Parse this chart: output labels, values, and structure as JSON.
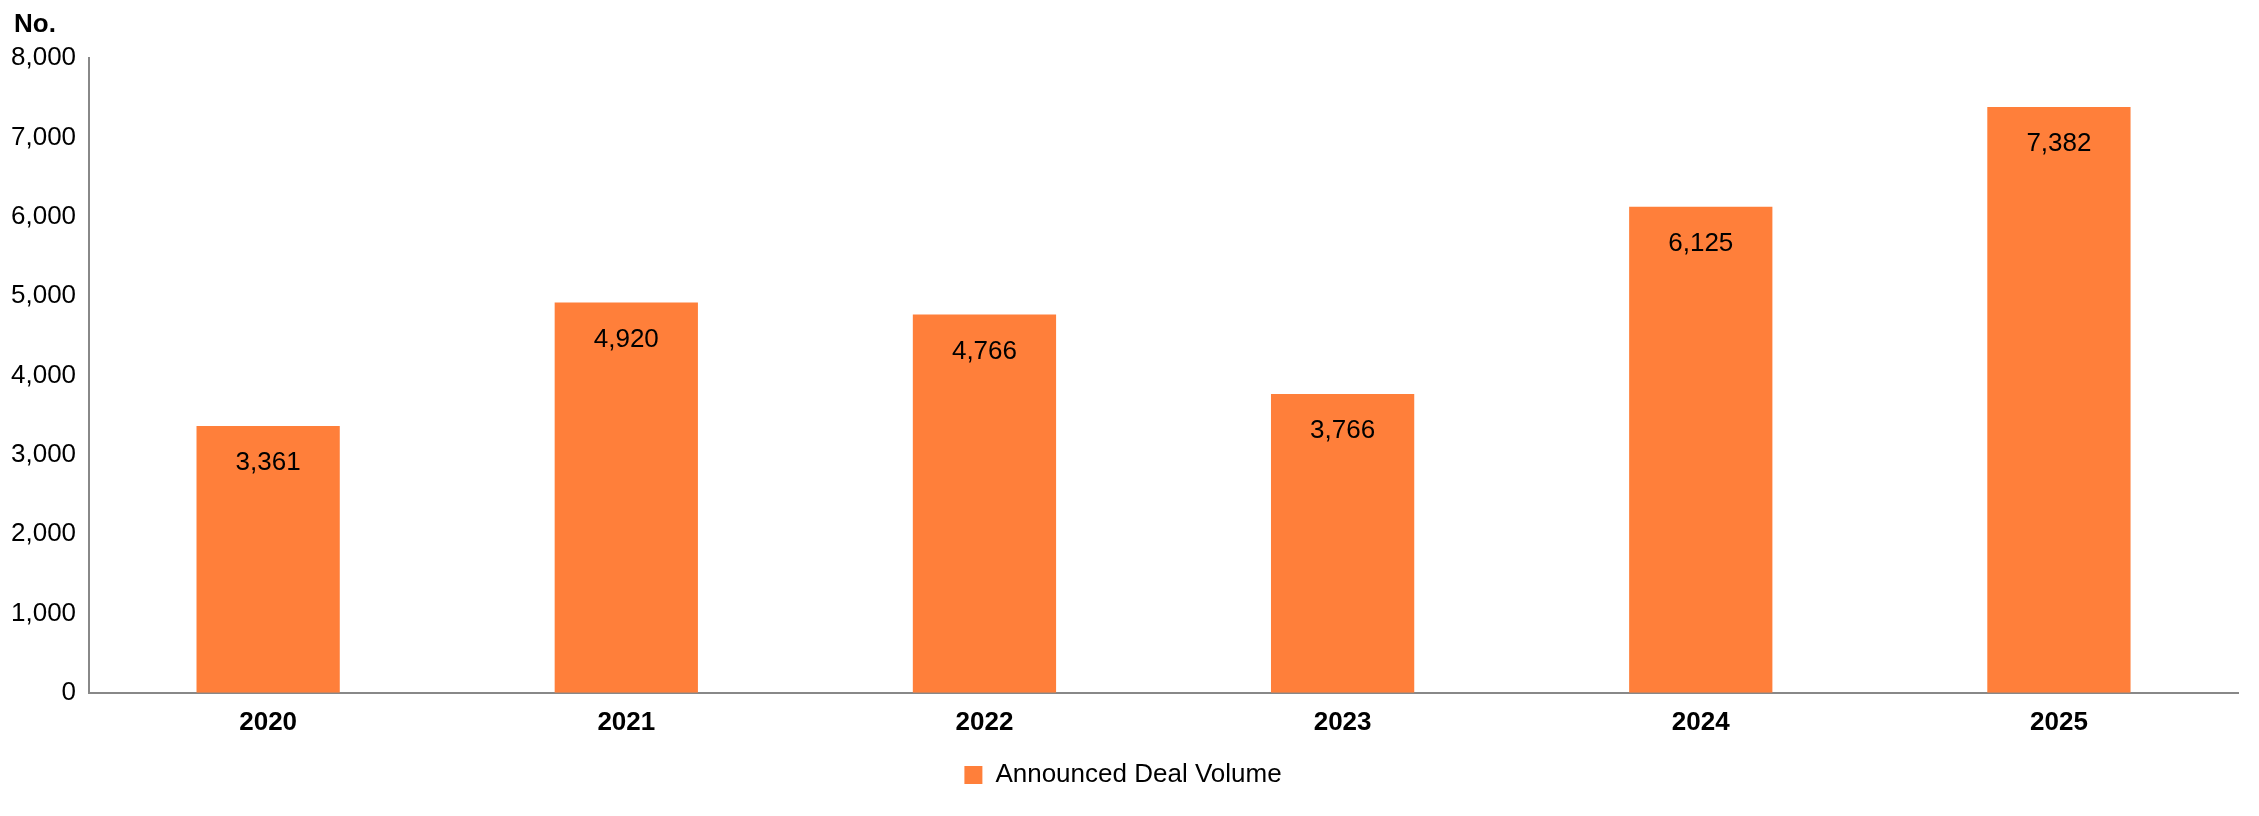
{
  "chart_data": {
    "type": "bar",
    "ylabel": "No.",
    "categories": [
      "2020",
      "2021",
      "2022",
      "2023",
      "2024",
      "2025"
    ],
    "series": [
      {
        "name": "Announced Deal Volume",
        "color": "#ff7f3a",
        "values": [
          3361,
          4920,
          4766,
          3766,
          6125,
          7382
        ],
        "value_labels": [
          "3,361",
          "4,920",
          "4,766",
          "3,766",
          "6,125",
          "7,382"
        ]
      }
    ],
    "ylim": [
      0,
      8000
    ],
    "yticks": [
      0,
      {
        "value": 1000,
        "label": "1,000"
      },
      {
        "value": 2000,
        "label": "2,000"
      },
      {
        "value": 3000,
        "label": "3,000"
      },
      {
        "value": 4000,
        "label": "4,000"
      },
      {
        "value": 5000,
        "label": "5,000"
      },
      {
        "value": 6000,
        "label": "6,000"
      },
      {
        "value": 7000,
        "label": "7,000"
      },
      {
        "value": 8000,
        "label": "8,000"
      }
    ],
    "grid": false,
    "legend": "bottom"
  }
}
